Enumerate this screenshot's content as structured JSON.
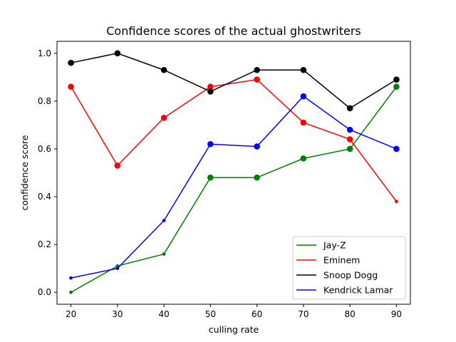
{
  "chart_data": {
    "type": "line",
    "title": "Confidence scores of the actual ghostwriters",
    "xlabel": "culling rate",
    "ylabel": "confidence score",
    "x": [
      20,
      30,
      40,
      50,
      60,
      70,
      80,
      90
    ],
    "xlim": [
      17,
      93
    ],
    "ylim": [
      -0.05,
      1.05
    ],
    "xticks": [
      20,
      30,
      40,
      50,
      60,
      70,
      80,
      90
    ],
    "yticks": [
      0.0,
      0.2,
      0.4,
      0.6,
      0.8,
      1.0
    ],
    "ytick_labels": [
      "0.0",
      "0.2",
      "0.4",
      "0.6",
      "0.8",
      "1.0"
    ],
    "grid": false,
    "legend_position": "lower-right",
    "series": [
      {
        "name": "Jay-Z",
        "color": "#008000",
        "values": [
          0.0,
          0.11,
          0.16,
          0.48,
          0.48,
          0.56,
          0.6,
          0.86
        ],
        "big_markers": [
          false,
          false,
          false,
          true,
          true,
          true,
          true,
          true
        ]
      },
      {
        "name": "Eminem",
        "color": "#ff0000",
        "values": [
          0.86,
          0.53,
          0.73,
          0.86,
          0.89,
          0.71,
          0.64,
          0.38
        ],
        "big_markers": [
          true,
          true,
          true,
          true,
          true,
          true,
          true,
          false
        ]
      },
      {
        "name": "Snoop Dogg",
        "color": "#000000",
        "values": [
          0.96,
          1.0,
          0.93,
          0.84,
          0.93,
          0.93,
          0.77,
          0.89
        ],
        "big_markers": [
          true,
          true,
          true,
          true,
          true,
          true,
          true,
          true
        ]
      },
      {
        "name": "Kendrick Lamar",
        "color": "#0000ff",
        "values": [
          0.06,
          0.1,
          0.3,
          0.62,
          0.61,
          0.82,
          0.68,
          0.6
        ],
        "big_markers": [
          false,
          false,
          false,
          true,
          true,
          true,
          true,
          true
        ]
      }
    ]
  }
}
